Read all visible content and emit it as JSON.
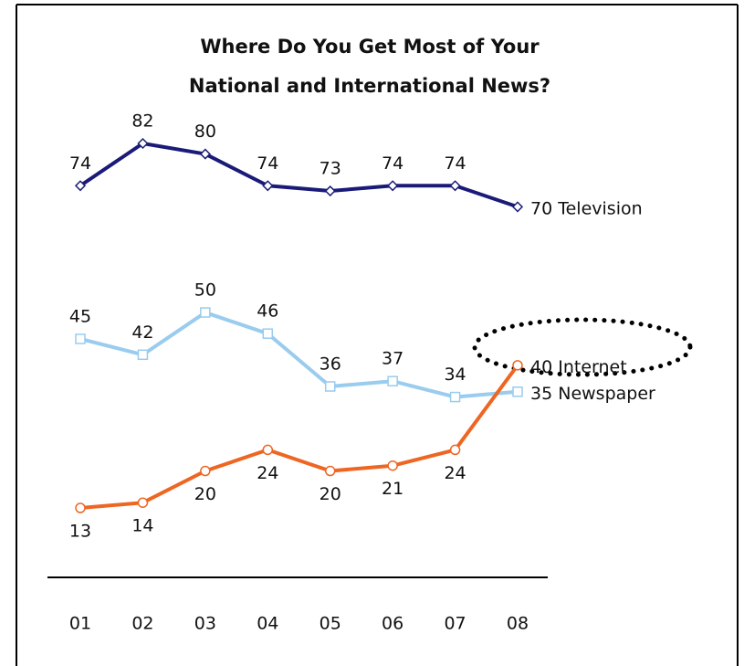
{
  "chart_data": {
    "type": "line",
    "title": [
      "Where Do You Get Most of Your",
      "National and International News?"
    ],
    "categories": [
      "01",
      "02",
      "03",
      "04",
      "05",
      "06",
      "07",
      "08"
    ],
    "series": [
      {
        "name": "Television",
        "color": "#1a1a78",
        "marker": "diamond",
        "values": [
          74,
          82,
          80,
          74,
          73,
          74,
          74,
          70
        ]
      },
      {
        "name": "Newspaper",
        "color": "#99ccee",
        "marker": "square",
        "values": [
          45,
          42,
          50,
          46,
          36,
          37,
          34,
          35
        ]
      },
      {
        "name": "Internet",
        "color": "#ee6622",
        "marker": "circle",
        "values": [
          13,
          14,
          20,
          24,
          20,
          21,
          24,
          40
        ]
      }
    ]
  }
}
